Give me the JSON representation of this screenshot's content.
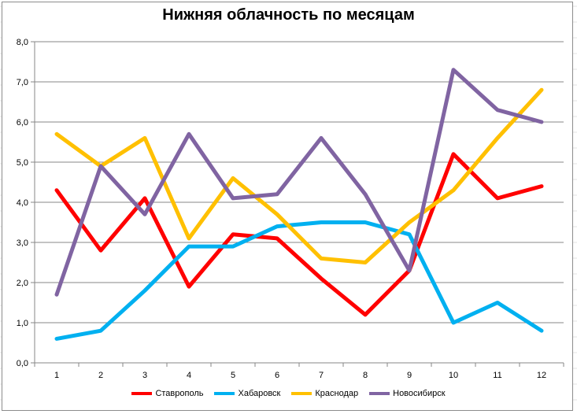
{
  "chart_data": {
    "type": "line",
    "title": "Нижняя облачность по месяцам",
    "xlabel": "",
    "ylabel": "",
    "categories": [
      "1",
      "2",
      "3",
      "4",
      "5",
      "6",
      "7",
      "8",
      "9",
      "10",
      "11",
      "12"
    ],
    "ylim": [
      0,
      8
    ],
    "y_ticks": [
      "0,0",
      "1,0",
      "2,0",
      "3,0",
      "4,0",
      "5,0",
      "6,0",
      "7,0",
      "8,0"
    ],
    "grid": true,
    "legend_position": "bottom",
    "series": [
      {
        "name": "Ставрополь",
        "color": "#ff0000",
        "values": [
          4.3,
          2.8,
          4.1,
          1.9,
          3.2,
          3.1,
          2.1,
          1.2,
          2.3,
          5.2,
          4.1,
          4.4
        ]
      },
      {
        "name": "Хабаровск",
        "color": "#00b0f0",
        "values": [
          0.6,
          0.8,
          1.8,
          2.9,
          2.9,
          3.4,
          3.5,
          3.5,
          3.2,
          1.0,
          1.5,
          0.8
        ]
      },
      {
        "name": "Краснодар",
        "color": "#ffc000",
        "values": [
          5.7,
          4.9,
          5.6,
          3.1,
          4.6,
          3.7,
          2.6,
          2.5,
          3.5,
          4.3,
          5.6,
          6.8
        ]
      },
      {
        "name": "Новосибирск",
        "color": "#8064a2",
        "values": [
          1.7,
          4.9,
          3.7,
          5.7,
          4.1,
          4.2,
          5.6,
          4.2,
          2.3,
          7.3,
          6.3,
          6.0
        ]
      }
    ]
  }
}
